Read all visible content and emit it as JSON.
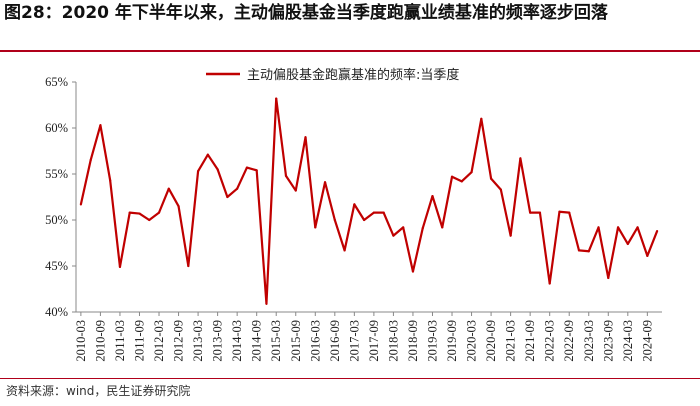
{
  "figure": {
    "title": "图28：2020 年下半年以来，主动偏股基金当季度跑赢业绩基准的频率逐步回落",
    "source": "资料来源：wind，民生证券研究院"
  },
  "colors": {
    "series": "#c00000",
    "rule": "#b0001a",
    "axis": "#888888"
  },
  "chart_data": {
    "type": "line",
    "title": "",
    "xlabel": "",
    "ylabel": "",
    "ylim": [
      40,
      65
    ],
    "yticks": [
      "40%",
      "45%",
      "50%",
      "55%",
      "60%",
      "65%"
    ],
    "ytick_values": [
      40,
      45,
      50,
      55,
      60,
      65
    ],
    "xtick_labels": [
      "2010-03",
      "2010-09",
      "2011-03",
      "2011-09",
      "2012-03",
      "2012-09",
      "2013-03",
      "2013-09",
      "2014-03",
      "2014-09",
      "2015-03",
      "2015-09",
      "2016-03",
      "2016-09",
      "2017-03",
      "2017-09",
      "2018-03",
      "2018-09",
      "2019-03",
      "2019-09",
      "2020-03",
      "2020-09",
      "2021-03",
      "2021-09",
      "2022-03",
      "2022-09",
      "2023-03",
      "2023-09",
      "2024-03",
      "2024-09"
    ],
    "legend_position": "top-center",
    "grid": false,
    "x": [
      "2010-03",
      "2010-06",
      "2010-09",
      "2010-12",
      "2011-03",
      "2011-06",
      "2011-09",
      "2011-12",
      "2012-03",
      "2012-06",
      "2012-09",
      "2012-12",
      "2013-03",
      "2013-06",
      "2013-09",
      "2013-12",
      "2014-03",
      "2014-06",
      "2014-09",
      "2014-12",
      "2015-03",
      "2015-06",
      "2015-09",
      "2015-12",
      "2016-03",
      "2016-06",
      "2016-09",
      "2016-12",
      "2017-03",
      "2017-06",
      "2017-09",
      "2017-12",
      "2018-03",
      "2018-06",
      "2018-09",
      "2018-12",
      "2019-03",
      "2019-06",
      "2019-09",
      "2019-12",
      "2020-03",
      "2020-06",
      "2020-09",
      "2020-12",
      "2021-03",
      "2021-06",
      "2021-09",
      "2021-12",
      "2022-03",
      "2022-06",
      "2022-09",
      "2022-12",
      "2023-03",
      "2023-06",
      "2023-09",
      "2023-12",
      "2024-03",
      "2024-06",
      "2024-09",
      "2024-12"
    ],
    "series": [
      {
        "name": "主动偏股基金跑赢基准的频率:当季度",
        "values": [
          51.7,
          56.5,
          60.3,
          54.3,
          44.9,
          50.8,
          50.7,
          50.0,
          50.8,
          53.4,
          51.5,
          45.0,
          55.3,
          57.1,
          55.5,
          52.5,
          53.4,
          55.7,
          55.4,
          40.9,
          63.2,
          54.8,
          53.2,
          59.0,
          49.2,
          54.1,
          50.0,
          46.7,
          51.7,
          50.0,
          50.8,
          50.8,
          48.3,
          49.2,
          44.4,
          49.1,
          52.6,
          49.2,
          54.7,
          54.2,
          55.2,
          61.0,
          54.5,
          53.3,
          48.3,
          56.7,
          50.8,
          50.8,
          43.1,
          50.9,
          50.8,
          46.7,
          46.6,
          49.2,
          43.7,
          49.2,
          47.4,
          49.2,
          46.1,
          48.8
        ]
      }
    ]
  }
}
